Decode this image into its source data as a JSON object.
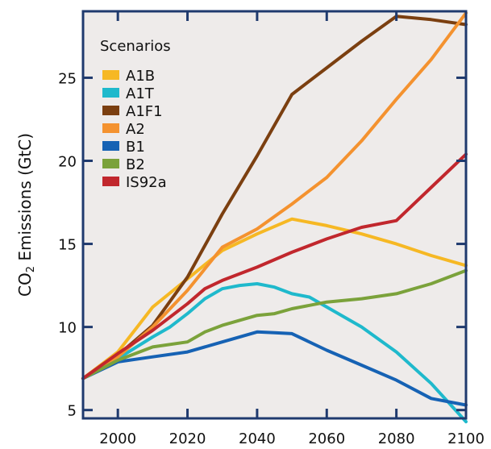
{
  "chart_data": {
    "type": "line",
    "ylabel_prefix": "CO",
    "ylabel_sub": "2",
    "ylabel_suffix": " Emissions (GtC)",
    "xlim": [
      1990,
      2100
    ],
    "ylim": [
      4.5,
      29
    ],
    "xticks": [
      2000,
      2020,
      2040,
      2060,
      2080,
      2100
    ],
    "yticks": [
      5,
      10,
      15,
      20,
      25
    ],
    "grid": false,
    "background": "#eeebea",
    "legend": {
      "title": "Scenarios",
      "placement": "top-left"
    },
    "series": [
      {
        "name": "A1B",
        "color": "#f6b824",
        "x": [
          1990,
          2000,
          2010,
          2020,
          2030,
          2040,
          2050,
          2060,
          2070,
          2080,
          2090,
          2100
        ],
        "y": [
          6.9,
          8.5,
          11.2,
          12.9,
          14.6,
          15.6,
          16.5,
          16.1,
          15.6,
          15.0,
          14.3,
          13.7
        ]
      },
      {
        "name": "A1T",
        "color": "#1fb9cc",
        "x": [
          1990,
          2000,
          2010,
          2015,
          2020,
          2025,
          2030,
          2035,
          2040,
          2045,
          2050,
          2055,
          2060,
          2070,
          2080,
          2090,
          2100
        ],
        "y": [
          6.9,
          8.1,
          9.4,
          10.0,
          10.8,
          11.7,
          12.3,
          12.5,
          12.6,
          12.4,
          12.0,
          11.8,
          11.2,
          10.0,
          8.5,
          6.6,
          4.3
        ]
      },
      {
        "name": "A1F1",
        "color": "#7b3f10",
        "x": [
          1990,
          2000,
          2010,
          2020,
          2030,
          2040,
          2050,
          2060,
          2070,
          2080,
          2090,
          2100
        ],
        "y": [
          6.9,
          8.3,
          10.1,
          13.0,
          16.8,
          20.3,
          24.0,
          25.6,
          27.2,
          28.7,
          28.5,
          28.2
        ]
      },
      {
        "name": "A2",
        "color": "#f4922f",
        "x": [
          1990,
          2000,
          2010,
          2020,
          2030,
          2040,
          2050,
          2060,
          2070,
          2080,
          2090,
          2100
        ],
        "y": [
          6.9,
          8.2,
          10.0,
          12.2,
          14.8,
          15.9,
          17.4,
          19.0,
          21.2,
          23.7,
          26.1,
          28.9
        ]
      },
      {
        "name": "B1",
        "color": "#1662b4",
        "x": [
          1990,
          2000,
          2010,
          2020,
          2030,
          2040,
          2045,
          2050,
          2060,
          2070,
          2080,
          2090,
          2100
        ],
        "y": [
          6.9,
          7.9,
          8.2,
          8.5,
          9.1,
          9.7,
          9.65,
          9.6,
          8.6,
          7.7,
          6.8,
          5.7,
          5.3
        ]
      },
      {
        "name": "B2",
        "color": "#7ba23b",
        "x": [
          1990,
          2000,
          2010,
          2020,
          2025,
          2030,
          2040,
          2045,
          2050,
          2060,
          2070,
          2080,
          2090,
          2100
        ],
        "y": [
          6.9,
          8.0,
          8.8,
          9.1,
          9.7,
          10.1,
          10.7,
          10.8,
          11.1,
          11.5,
          11.7,
          12.0,
          12.6,
          13.4
        ]
      },
      {
        "name": "IS92a",
        "color": "#c1272d",
        "x": [
          1990,
          2000,
          2010,
          2020,
          2025,
          2030,
          2040,
          2050,
          2060,
          2070,
          2080,
          2090,
          2100
        ],
        "y": [
          6.9,
          8.4,
          9.8,
          11.4,
          12.3,
          12.8,
          13.6,
          14.5,
          15.3,
          16.0,
          16.4,
          18.4,
          20.4
        ]
      }
    ]
  }
}
